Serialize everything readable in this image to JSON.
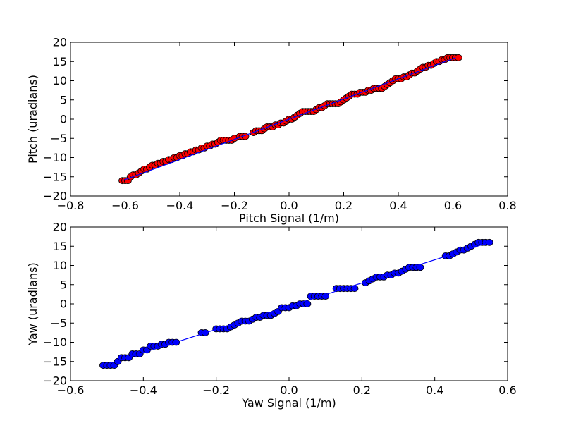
{
  "chart_data": [
    {
      "type": "scatter",
      "xlabel": "Pitch Signal (1/m)",
      "ylabel": "Pitch (uradians)",
      "xlim": [
        -0.8,
        0.8
      ],
      "ylim": [
        -20,
        20
      ],
      "xticks": [
        -0.8,
        -0.6,
        -0.4,
        -0.2,
        0.0,
        0.2,
        0.4,
        0.6,
        0.8
      ],
      "xtick_labels": [
        "−0.8",
        "−0.6",
        "−0.4",
        "−0.2",
        "0.0",
        "0.2",
        "0.4",
        "0.6",
        "0.8"
      ],
      "yticks": [
        -20,
        -15,
        -10,
        -5,
        0,
        5,
        10,
        15,
        20
      ],
      "ytick_labels": [
        "−20",
        "−15",
        "−10",
        "−5",
        "0",
        "5",
        "10",
        "15",
        "20"
      ],
      "marker_color": "#ff0000",
      "line_color": "#0000ff",
      "fit_line": {
        "x": [
          -0.61,
          0.61
        ],
        "y": [
          -16,
          16
        ]
      },
      "points": {
        "x": [
          -0.61,
          -0.6,
          -0.59,
          -0.58,
          -0.57,
          -0.56,
          -0.55,
          -0.54,
          -0.53,
          -0.52,
          -0.51,
          -0.5,
          -0.49,
          -0.48,
          -0.47,
          -0.46,
          -0.45,
          -0.44,
          -0.43,
          -0.42,
          -0.41,
          -0.4,
          -0.39,
          -0.38,
          -0.37,
          -0.36,
          -0.35,
          -0.34,
          -0.33,
          -0.32,
          -0.31,
          -0.3,
          -0.29,
          -0.28,
          -0.27,
          -0.26,
          -0.25,
          -0.24,
          -0.23,
          -0.22,
          -0.21,
          -0.2,
          -0.18,
          -0.17,
          -0.16,
          -0.13,
          -0.12,
          -0.11,
          -0.1,
          -0.09,
          -0.08,
          -0.07,
          -0.06,
          -0.05,
          -0.04,
          -0.03,
          -0.02,
          -0.01,
          0.0,
          0.01,
          0.02,
          0.03,
          0.04,
          0.05,
          0.06,
          0.07,
          0.08,
          0.09,
          0.1,
          0.11,
          0.12,
          0.13,
          0.14,
          0.15,
          0.16,
          0.17,
          0.18,
          0.19,
          0.2,
          0.21,
          0.22,
          0.23,
          0.24,
          0.25,
          0.26,
          0.27,
          0.28,
          0.29,
          0.3,
          0.31,
          0.32,
          0.33,
          0.34,
          0.35,
          0.36,
          0.37,
          0.38,
          0.39,
          0.4,
          0.41,
          0.42,
          0.43,
          0.44,
          0.45,
          0.46,
          0.47,
          0.48,
          0.49,
          0.5,
          0.51,
          0.52,
          0.53,
          0.54,
          0.55,
          0.56,
          0.57,
          0.58,
          0.59,
          0.6,
          0.61,
          0.62
        ],
        "y": [
          -16,
          -16,
          -16,
          -15,
          -14.5,
          -14.5,
          -14,
          -13.5,
          -13,
          -13,
          -12.5,
          -12,
          -12,
          -11.5,
          -11.5,
          -11,
          -11,
          -10.5,
          -10.5,
          -10,
          -10,
          -9.5,
          -9.5,
          -9,
          -9,
          -8.5,
          -8.5,
          -8,
          -8,
          -7.5,
          -7.5,
          -7,
          -7,
          -6.5,
          -6.5,
          -6,
          -5.5,
          -5.5,
          -5.5,
          -5.5,
          -5.5,
          -5,
          -4.5,
          -4.5,
          -4.5,
          -3.5,
          -3,
          -3,
          -3,
          -2.5,
          -2,
          -2,
          -2,
          -1.5,
          -1.5,
          -1,
          -1,
          -0.5,
          0,
          0,
          0.5,
          1,
          1.5,
          2,
          2,
          2,
          2,
          2,
          2.5,
          3,
          3,
          3.5,
          4,
          4,
          4,
          4,
          4,
          4.5,
          5,
          5.5,
          6,
          6.5,
          6.5,
          6.5,
          7,
          7,
          7,
          7.5,
          7.5,
          8,
          8,
          8,
          8,
          8.5,
          9,
          9.5,
          10,
          10.5,
          10.5,
          10.5,
          11,
          11,
          11.5,
          12,
          12,
          12.5,
          13,
          13.5,
          13.5,
          14,
          14,
          14.5,
          15,
          15,
          15.5,
          15.5,
          16,
          16,
          16,
          16,
          16
        ]
      }
    },
    {
      "type": "scatter",
      "xlabel": "Yaw Signal (1/m)",
      "ylabel": "Yaw (uradians)",
      "xlim": [
        -0.6,
        0.6
      ],
      "ylim": [
        -20,
        20
      ],
      "xticks": [
        -0.6,
        -0.4,
        -0.2,
        0.0,
        0.2,
        0.4,
        0.6
      ],
      "xtick_labels": [
        "−0.6",
        "−0.4",
        "−0.2",
        "0.0",
        "0.2",
        "0.4",
        "0.6"
      ],
      "yticks": [
        -20,
        -15,
        -10,
        -5,
        0,
        5,
        10,
        15,
        20
      ],
      "ytick_labels": [
        "−20",
        "−15",
        "−10",
        "−5",
        "0",
        "5",
        "10",
        "15",
        "20"
      ],
      "marker_color": "#0000ff",
      "line_color": "#0000ff",
      "fit_line": {
        "x": [
          -0.51,
          0.55
        ],
        "y": [
          -16,
          16
        ]
      },
      "points": {
        "x": [
          -0.51,
          -0.5,
          -0.49,
          -0.48,
          -0.47,
          -0.46,
          -0.45,
          -0.44,
          -0.43,
          -0.42,
          -0.41,
          -0.4,
          -0.39,
          -0.38,
          -0.37,
          -0.36,
          -0.35,
          -0.34,
          -0.33,
          -0.32,
          -0.31,
          -0.24,
          -0.23,
          -0.2,
          -0.19,
          -0.18,
          -0.17,
          -0.16,
          -0.15,
          -0.14,
          -0.13,
          -0.12,
          -0.11,
          -0.1,
          -0.09,
          -0.08,
          -0.07,
          -0.06,
          -0.05,
          -0.04,
          -0.03,
          -0.02,
          -0.01,
          0.0,
          0.01,
          0.02,
          0.03,
          0.04,
          0.05,
          0.06,
          0.07,
          0.08,
          0.09,
          0.1,
          0.13,
          0.14,
          0.15,
          0.16,
          0.17,
          0.18,
          0.21,
          0.22,
          0.23,
          0.24,
          0.25,
          0.26,
          0.27,
          0.28,
          0.29,
          0.3,
          0.31,
          0.32,
          0.33,
          0.34,
          0.35,
          0.36,
          0.43,
          0.44,
          0.45,
          0.46,
          0.47,
          0.48,
          0.49,
          0.5,
          0.51,
          0.52,
          0.53,
          0.54,
          0.55
        ],
        "y": [
          -16,
          -16,
          -16,
          -16,
          -15,
          -14,
          -14,
          -14,
          -13,
          -13,
          -13,
          -12,
          -12,
          -11,
          -11,
          -11,
          -10.5,
          -10.5,
          -10,
          -10,
          -10,
          -7.5,
          -7.5,
          -6.5,
          -6.5,
          -6.5,
          -6.5,
          -6,
          -5.5,
          -5,
          -4.5,
          -4.5,
          -4.5,
          -4,
          -3.5,
          -3.5,
          -3,
          -3,
          -3,
          -2.5,
          -2,
          -1,
          -1,
          -1,
          -0.5,
          -0.5,
          0,
          0,
          0,
          2,
          2,
          2,
          2,
          2,
          4,
          4,
          4,
          4,
          4,
          4,
          5.5,
          6,
          6.5,
          7,
          7,
          7,
          7.5,
          7.5,
          8,
          8,
          8.5,
          9,
          9.5,
          9.5,
          9.5,
          9.5,
          12.5,
          12.5,
          13,
          13.5,
          14,
          14,
          14.5,
          15,
          15.5,
          16,
          16,
          16,
          16
        ]
      }
    }
  ]
}
